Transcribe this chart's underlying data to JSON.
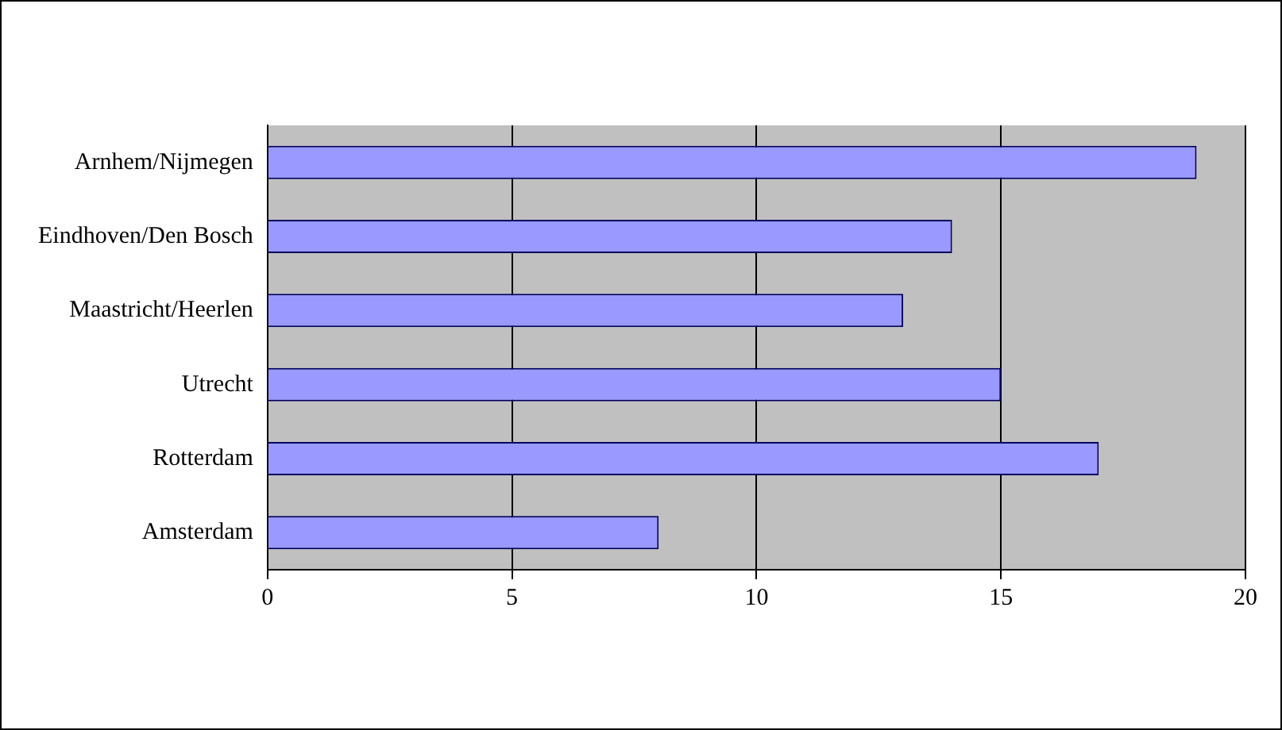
{
  "chart_data": {
    "type": "bar",
    "orientation": "horizontal",
    "categories": [
      "Arnhem/Nijmegen",
      "Eindhoven/Den Bosch",
      "Maastricht/Heerlen",
      "Utrecht",
      "Rotterdam",
      "Amsterdam"
    ],
    "values": [
      19,
      14,
      13,
      15,
      17,
      8
    ],
    "color": "#9999ff",
    "xlim": [
      0,
      20
    ],
    "xticks": [
      0,
      5,
      10,
      15,
      20
    ],
    "grid": "x",
    "legend": false
  }
}
